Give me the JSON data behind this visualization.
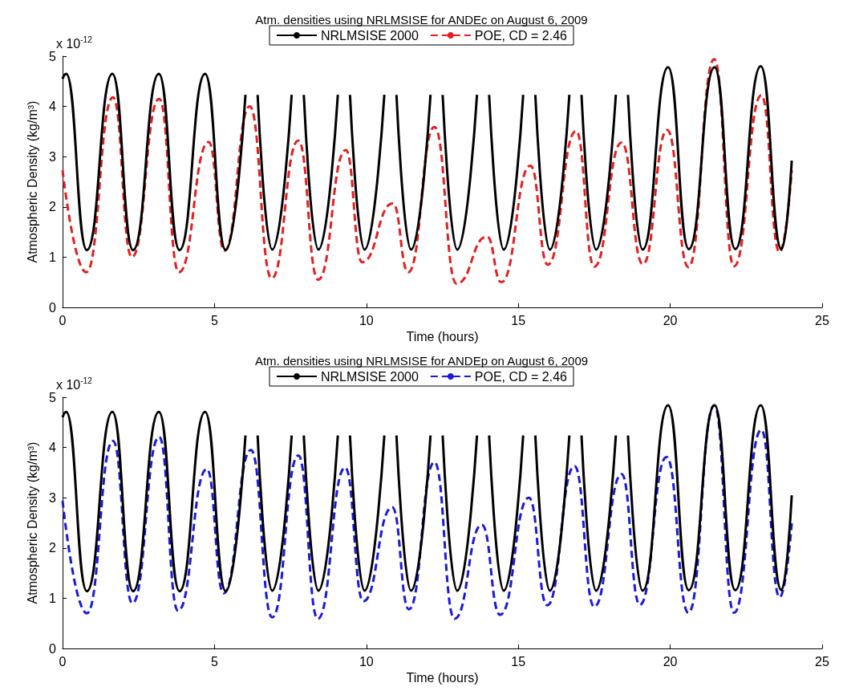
{
  "chart_data": [
    {
      "type": "line",
      "title": "Atm. densities using NRLMSISE for ANDEc on August 6, 2009",
      "xlabel": "Time (hours)",
      "ylabel": "Atmospheric Density (kg/m³)",
      "annotations": [
        "x 10$^{-12}$"
      ],
      "xlim": [
        0,
        25
      ],
      "xticks": [
        0,
        5,
        10,
        15,
        20,
        25
      ],
      "ylim": [
        0,
        5
      ],
      "yticks": [
        0,
        1,
        2,
        3,
        4,
        5
      ],
      "grid": false,
      "legend": "top",
      "marker": "none",
      "series": [
        {
          "name": "NRLMSISE 2000",
          "color": "#000000",
          "line_style": "solid",
          "x": [
            0,
            0.12,
            0.8,
            1.64,
            2.32,
            3.17,
            3.85,
            4.69,
            5.37,
            6.02,
            6.22,
            6.42,
            6.9,
            7.54,
            7.74,
            7.94,
            8.42,
            9.06,
            9.26,
            9.46,
            9.94,
            10.59,
            10.79,
            10.99,
            11.47,
            12.11,
            12.31,
            12.51,
            12.99,
            13.64,
            13.84,
            14.04,
            14.52,
            15.16,
            15.36,
            15.56,
            16.04,
            16.68,
            16.88,
            17.08,
            17.56,
            18.21,
            18.41,
            18.61,
            19.09,
            19.93,
            20.61,
            21.46,
            22.14,
            22.98,
            23.66,
            24
          ],
          "values": [
            4.55,
            4.65,
            1.14,
            4.65,
            1.14,
            4.65,
            1.14,
            4.65,
            1.14,
            4.23,
            null,
            4.23,
            1.15,
            4.23,
            null,
            4.23,
            1.15,
            4.23,
            null,
            4.23,
            1.15,
            4.23,
            null,
            4.23,
            1.15,
            4.23,
            null,
            4.23,
            1.15,
            4.23,
            null,
            4.23,
            1.15,
            4.23,
            null,
            4.23,
            1.15,
            4.23,
            null,
            4.23,
            1.15,
            4.23,
            null,
            4.23,
            1.15,
            4.78,
            1.16,
            4.78,
            1.16,
            4.8,
            1.16,
            2.92
          ]
        },
        {
          "name": "POE, CD = 2.46",
          "color": "#e32020",
          "line_style": "dashed",
          "x": [
            0,
            0.78,
            1.66,
            2.28,
            3.18,
            3.83,
            4.81,
            5.33,
            6.16,
            6.88,
            7.76,
            8.41,
            9.32,
            9.86,
            10.87,
            11.38,
            12.24,
            12.97,
            13.97,
            14.44,
            15.4,
            15.97,
            16.9,
            17.5,
            18.4,
            19.1,
            19.9,
            20.6,
            21.45,
            22.1,
            23.0,
            23.6,
            24
          ],
          "values": [
            2.73,
            0.7,
            4.18,
            1.0,
            4.15,
            0.7,
            3.29,
            1.13,
            4.0,
            0.58,
            3.32,
            0.55,
            3.13,
            0.9,
            2.07,
            0.7,
            3.59,
            0.47,
            1.41,
            0.5,
            2.82,
            0.85,
            3.51,
            0.81,
            3.28,
            0.86,
            3.53,
            0.8,
            4.94,
            0.82,
            4.22,
            1.1,
            2.73
          ]
        }
      ]
    },
    {
      "type": "line",
      "title": "Atm. densities using NRLMSISE for ANDEp on August 6, 2009",
      "xlabel": "Time (hours)",
      "ylabel": "Atmospheric Density (kg/m³)",
      "annotations": [
        "x 10$^{-12}$"
      ],
      "xlim": [
        0,
        25
      ],
      "xticks": [
        0,
        5,
        10,
        15,
        20,
        25
      ],
      "ylim": [
        0,
        5
      ],
      "yticks": [
        0,
        1,
        2,
        3,
        4,
        5
      ],
      "grid": false,
      "legend": "top",
      "marker": "none",
      "series": [
        {
          "name": "NRLMSISE 2000",
          "color": "#000000",
          "line_style": "solid",
          "x": [
            0,
            0.12,
            0.8,
            1.64,
            2.32,
            3.17,
            3.85,
            4.69,
            5.37,
            6.02,
            6.22,
            6.42,
            6.9,
            7.54,
            7.74,
            7.94,
            8.42,
            9.06,
            9.26,
            9.46,
            9.94,
            10.59,
            10.79,
            10.99,
            11.47,
            12.11,
            12.31,
            12.51,
            12.99,
            13.64,
            13.84,
            14.04,
            14.52,
            15.16,
            15.36,
            15.56,
            16.04,
            16.68,
            16.88,
            17.08,
            17.56,
            18.21,
            18.41,
            18.61,
            19.09,
            19.93,
            20.61,
            21.46,
            22.14,
            22.98,
            23.66,
            24
          ],
          "values": [
            4.6,
            4.71,
            1.14,
            4.71,
            1.14,
            4.71,
            1.14,
            4.71,
            1.14,
            4.24,
            null,
            4.24,
            1.15,
            4.24,
            null,
            4.24,
            1.15,
            4.24,
            null,
            4.24,
            1.15,
            4.24,
            null,
            4.24,
            1.15,
            4.24,
            null,
            4.24,
            1.15,
            4.24,
            null,
            4.24,
            1.15,
            4.24,
            null,
            4.24,
            1.15,
            4.24,
            null,
            4.24,
            1.15,
            4.24,
            null,
            4.24,
            1.15,
            4.84,
            1.16,
            4.84,
            1.16,
            4.84,
            1.16,
            3.05
          ]
        },
        {
          "name": "POE, CD = 2.46",
          "color": "#1a1adc",
          "line_style": "dashed",
          "x": [
            0,
            0.8,
            1.66,
            2.3,
            3.18,
            3.8,
            4.75,
            5.3,
            6.2,
            6.9,
            7.76,
            8.4,
            9.3,
            9.9,
            10.85,
            11.4,
            12.24,
            12.9,
            13.8,
            14.4,
            15.35,
            15.95,
            16.85,
            17.5,
            18.4,
            19.0,
            19.88,
            20.6,
            21.45,
            22.1,
            23.0,
            23.6,
            24
          ],
          "values": [
            2.94,
            0.7,
            4.13,
            0.9,
            4.21,
            0.75,
            3.57,
            1.1,
            3.95,
            0.62,
            3.84,
            0.59,
            3.6,
            0.94,
            2.81,
            0.78,
            3.71,
            0.59,
            2.46,
            0.67,
            3.0,
            0.86,
            3.63,
            0.83,
            3.47,
            0.87,
            3.81,
            0.71,
            4.84,
            0.71,
            4.35,
            1.02,
            2.49
          ]
        }
      ]
    }
  ]
}
